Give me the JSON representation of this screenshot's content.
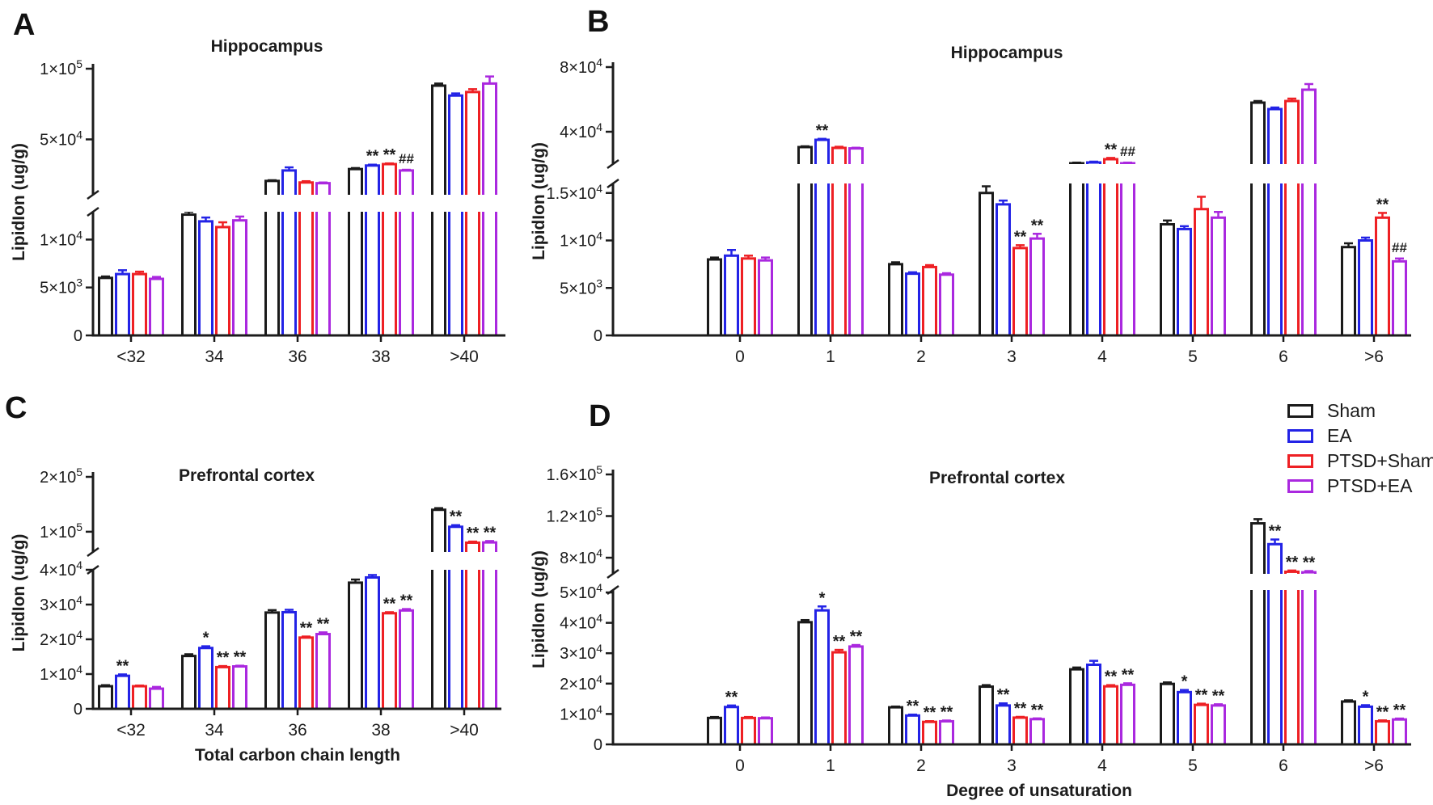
{
  "legend": {
    "items": [
      {
        "label": "Sham",
        "color": "#1a1a1a"
      },
      {
        "label": "EA",
        "color": "#2323e6"
      },
      {
        "label": "PTSD+Sham",
        "color": "#ee2024"
      },
      {
        "label": "PTSD+EA",
        "color": "#aa28df"
      }
    ]
  },
  "chart_data": [
    {
      "id": "A",
      "panel_label": "A",
      "type": "bar",
      "title": "Hippocampus",
      "xlabel": "Total carbon chain length",
      "ylabel": "LipidIon (ug/g)",
      "legend_position": "figure-right",
      "grid": false,
      "categories": [
        "<32",
        "34",
        "36",
        "38",
        ">40"
      ],
      "series": [
        {
          "name": "Sham",
          "values": [
            6000,
            12600,
            20600,
            29000,
            88000
          ],
          "errors": [
            150,
            300,
            500,
            700,
            1500
          ]
        },
        {
          "name": "EA",
          "values": [
            6400,
            11900,
            28000,
            31500,
            81000
          ],
          "errors": [
            400,
            400,
            2200,
            600,
            1500
          ]
        },
        {
          "name": "PTSD+Sham",
          "values": [
            6400,
            11300,
            19500,
            32500,
            83500
          ],
          "errors": [
            250,
            500,
            900,
            500,
            2000
          ]
        },
        {
          "name": "PTSD+EA",
          "values": [
            5900,
            12000,
            19000,
            28000,
            89500
          ],
          "errors": [
            200,
            400,
            500,
            500,
            5000
          ]
        }
      ],
      "significance": [
        {
          "category": "38",
          "series": "EA",
          "text": "**"
        },
        {
          "category": "38",
          "series": "PTSD+Sham",
          "text": "**"
        },
        {
          "category": "38",
          "series": "PTSD+EA",
          "text": "##"
        }
      ],
      "y_axis": {
        "break": true,
        "low": {
          "min": 0,
          "max": 12900,
          "ticks": [
            {
              "v": 0,
              "label": "0"
            },
            {
              "v": 5000,
              "label": "5×10^3"
            },
            {
              "v": 10000,
              "label": "1×10^4"
            }
          ]
        },
        "high": {
          "min": 10800,
          "max": 100000,
          "ticks": [
            {
              "v": 50000,
              "label": "5×10^4"
            },
            {
              "v": 100000,
              "label": "1×10^5"
            }
          ]
        }
      }
    },
    {
      "id": "B",
      "panel_label": "B",
      "type": "bar",
      "title": "Hippocampus",
      "xlabel": "Degree of unsaturation",
      "ylabel": "LipidIon (ug/g)",
      "grid": false,
      "categories": [
        "0",
        "1",
        "2",
        "3",
        "4",
        "5",
        "6",
        ">6"
      ],
      "series": [
        {
          "name": "Sham",
          "values": [
            8000,
            30500,
            7500,
            15000,
            20500,
            11700,
            58000,
            9300
          ],
          "errors": [
            200,
            500,
            200,
            700,
            400,
            400,
            1000,
            400
          ]
        },
        {
          "name": "EA",
          "values": [
            8400,
            35000,
            6500,
            13800,
            21000,
            11200,
            54000,
            10000
          ],
          "errors": [
            600,
            600,
            150,
            400,
            500,
            300,
            1000,
            300
          ]
        },
        {
          "name": "PTSD+Sham",
          "values": [
            8100,
            30000,
            7200,
            9200,
            23000,
            13300,
            59000,
            12400
          ],
          "errors": [
            300,
            700,
            200,
            300,
            800,
            1300,
            1500,
            500
          ]
        },
        {
          "name": "PTSD+EA",
          "values": [
            7900,
            29700,
            6400,
            10200,
            20500,
            12400,
            66000,
            7800
          ],
          "errors": [
            300,
            400,
            150,
            500,
            400,
            600,
            3500,
            300
          ]
        }
      ],
      "significance": [
        {
          "category": "1",
          "series": "EA",
          "text": "**"
        },
        {
          "category": "3",
          "series": "PTSD+Sham",
          "text": "**"
        },
        {
          "category": "3",
          "series": "PTSD+EA",
          "text": "**"
        },
        {
          "category": "4",
          "series": "PTSD+Sham",
          "text": "**"
        },
        {
          "category": "4",
          "series": "PTSD+EA",
          "text": "##"
        },
        {
          "category": ">6",
          "series": "PTSD+Sham",
          "text": "**"
        },
        {
          "category": ">6",
          "series": "PTSD+EA",
          "text": "##"
        }
      ],
      "y_axis": {
        "break": true,
        "low": {
          "min": 0,
          "max": 16000,
          "ticks": [
            {
              "v": 0,
              "label": "0"
            },
            {
              "v": 5000,
              "label": "5×10^3"
            },
            {
              "v": 10000,
              "label": "1×10^4"
            },
            {
              "v": 15000,
              "label": "1.5×10^4"
            }
          ]
        },
        "high": {
          "min": 20000,
          "max": 80000,
          "ticks": [
            {
              "v": 40000,
              "label": "4×10^4"
            },
            {
              "v": 80000,
              "label": "8×10^4"
            }
          ]
        }
      }
    },
    {
      "id": "C",
      "panel_label": "C",
      "type": "bar",
      "title": "Prefrontal cortex",
      "xlabel": "Total carbon chain length",
      "ylabel": "LipidIon (ug/g)",
      "grid": false,
      "categories": [
        "<32",
        "34",
        "36",
        "38",
        ">40"
      ],
      "series": [
        {
          "name": "Sham",
          "values": [
            6500,
            15200,
            27700,
            36300,
            140000
          ],
          "errors": [
            300,
            500,
            700,
            900,
            3000
          ]
        },
        {
          "name": "EA",
          "values": [
            9500,
            17500,
            27800,
            37800,
            109000
          ],
          "errors": [
            400,
            500,
            700,
            700,
            3000
          ]
        },
        {
          "name": "PTSD+Sham",
          "values": [
            6500,
            12000,
            20500,
            27500,
            80000
          ],
          "errors": [
            200,
            300,
            300,
            300,
            2000
          ]
        },
        {
          "name": "PTSD+EA",
          "values": [
            5800,
            12200,
            21500,
            28300,
            80500
          ],
          "errors": [
            500,
            200,
            500,
            400,
            2500
          ]
        }
      ],
      "significance": [
        {
          "category": "<32",
          "series": "EA",
          "text": "**"
        },
        {
          "category": "34",
          "series": "EA",
          "text": "*"
        },
        {
          "category": "34",
          "series": "PTSD+Sham",
          "text": "**"
        },
        {
          "category": "34",
          "series": "PTSD+EA",
          "text": "**"
        },
        {
          "category": "36",
          "series": "PTSD+Sham",
          "text": "**"
        },
        {
          "category": "36",
          "series": "PTSD+EA",
          "text": "**"
        },
        {
          "category": "38",
          "series": "PTSD+Sham",
          "text": "**"
        },
        {
          "category": "38",
          "series": "PTSD+EA",
          "text": "**"
        },
        {
          "category": ">40",
          "series": "EA",
          "text": "**"
        },
        {
          "category": ">40",
          "series": "PTSD+Sham",
          "text": "**"
        },
        {
          "category": ">40",
          "series": "PTSD+EA",
          "text": "**"
        }
      ],
      "y_axis": {
        "break": true,
        "low": {
          "min": 0,
          "max": 40000,
          "ticks": [
            {
              "v": 0,
              "label": "0"
            },
            {
              "v": 10000,
              "label": "1×10^4"
            },
            {
              "v": 20000,
              "label": "2×10^4"
            },
            {
              "v": 30000,
              "label": "3×10^4"
            },
            {
              "v": 40000,
              "label": "4×10^4"
            }
          ]
        },
        "high": {
          "min": 63000,
          "max": 200000,
          "ticks": [
            {
              "v": 100000,
              "label": "1×10^5"
            },
            {
              "v": 200000,
              "label": "2×10^5"
            }
          ]
        }
      }
    },
    {
      "id": "D",
      "panel_label": "D",
      "type": "bar",
      "title": "Prefrontal cortex",
      "xlabel": "Degree of unsaturation",
      "ylabel": "LipidIon (ug/g)",
      "grid": false,
      "categories": [
        "0",
        "1",
        "2",
        "3",
        "4",
        "5",
        "6",
        ">6"
      ],
      "series": [
        {
          "name": "Sham",
          "values": [
            8700,
            40200,
            12200,
            19000,
            24700,
            19900,
            113000,
            14100
          ],
          "errors": [
            300,
            700,
            250,
            500,
            600,
            500,
            4000,
            400
          ]
        },
        {
          "name": "EA",
          "values": [
            12300,
            44100,
            9500,
            12800,
            26200,
            17200,
            93000,
            12400
          ],
          "errors": [
            500,
            1300,
            300,
            700,
            1300,
            700,
            4500,
            500
          ]
        },
        {
          "name": "PTSD+Sham",
          "values": [
            8700,
            30300,
            7400,
            8800,
            19100,
            13000,
            66500,
            7600
          ],
          "errors": [
            300,
            800,
            250,
            250,
            400,
            400,
            1200,
            300
          ]
        },
        {
          "name": "PTSD+EA",
          "values": [
            8600,
            32200,
            7600,
            8300,
            19600,
            12800,
            66000,
            8200
          ],
          "errors": [
            250,
            500,
            250,
            250,
            500,
            400,
            1200,
            300
          ]
        }
      ],
      "significance": [
        {
          "category": "0",
          "series": "EA",
          "text": "**"
        },
        {
          "category": "1",
          "series": "EA",
          "text": "*"
        },
        {
          "category": "1",
          "series": "PTSD+Sham",
          "text": "**"
        },
        {
          "category": "1",
          "series": "PTSD+EA",
          "text": "**"
        },
        {
          "category": "2",
          "series": "EA",
          "text": "**"
        },
        {
          "category": "2",
          "series": "PTSD+Sham",
          "text": "**"
        },
        {
          "category": "2",
          "series": "PTSD+EA",
          "text": "**"
        },
        {
          "category": "3",
          "series": "EA",
          "text": "**"
        },
        {
          "category": "3",
          "series": "PTSD+Sham",
          "text": "**"
        },
        {
          "category": "3",
          "series": "PTSD+EA",
          "text": "**"
        },
        {
          "category": "4",
          "series": "PTSD+Sham",
          "text": "**"
        },
        {
          "category": "4",
          "series": "PTSD+EA",
          "text": "**"
        },
        {
          "category": "5",
          "series": "EA",
          "text": "*"
        },
        {
          "category": "5",
          "series": "PTSD+Sham",
          "text": "**"
        },
        {
          "category": "5",
          "series": "PTSD+EA",
          "text": "**"
        },
        {
          "category": "6",
          "series": "EA",
          "text": "**"
        },
        {
          "category": "6",
          "series": "PTSD+Sham",
          "text": "**"
        },
        {
          "category": "6",
          "series": "PTSD+EA",
          "text": "**"
        },
        {
          "category": ">6",
          "series": "EA",
          "text": "*"
        },
        {
          "category": ">6",
          "series": "PTSD+Sham",
          "text": "**"
        },
        {
          "category": ">6",
          "series": "PTSD+EA",
          "text": "**"
        }
      ],
      "y_axis": {
        "break": true,
        "low": {
          "min": 0,
          "max": 50800,
          "ticks": [
            {
              "v": 0,
              "label": "0"
            },
            {
              "v": 10000,
              "label": "1×10^4"
            },
            {
              "v": 20000,
              "label": "2×10^4"
            },
            {
              "v": 30000,
              "label": "3×10^4"
            },
            {
              "v": 40000,
              "label": "4×10^4"
            },
            {
              "v": 50000,
              "label": "5×10^4"
            }
          ]
        },
        "high": {
          "min": 64500,
          "max": 160000,
          "ticks": [
            {
              "v": 80000,
              "label": "8×10^4"
            },
            {
              "v": 120000,
              "label": "1.2×10^5"
            },
            {
              "v": 160000,
              "label": "1.6×10^5"
            }
          ]
        }
      }
    }
  ]
}
